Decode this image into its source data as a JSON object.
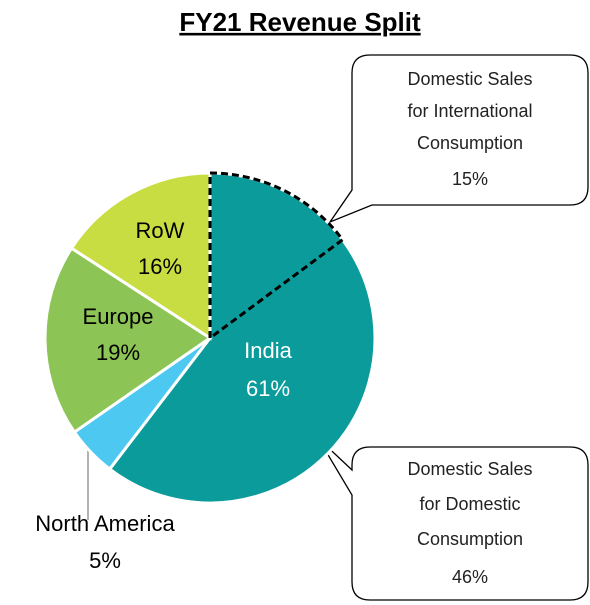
{
  "chart_data": {
    "type": "pie",
    "title": "FY21  Revenue Split",
    "categories": [
      "India",
      "North America",
      "Europe",
      "RoW"
    ],
    "values": [
      61,
      5,
      19,
      16
    ],
    "value_labels": [
      "61%",
      "5%",
      "19%",
      "16%"
    ],
    "colors": [
      "#0b9b9b",
      "#4dc8f0",
      "#8cc455",
      "#c8dd42"
    ],
    "label_colors": [
      "#ffffff",
      "#000000",
      "#000000",
      "#000000"
    ],
    "subsplit": [
      {
        "lines": [
          "Domestic Sales",
          "for International",
          "Consumption"
        ],
        "value": 15,
        "value_label": "15%"
      },
      {
        "lines": [
          "Domestic Sales",
          "for Domestic",
          "Consumption"
        ],
        "value": 46,
        "value_label": "46%"
      }
    ]
  }
}
